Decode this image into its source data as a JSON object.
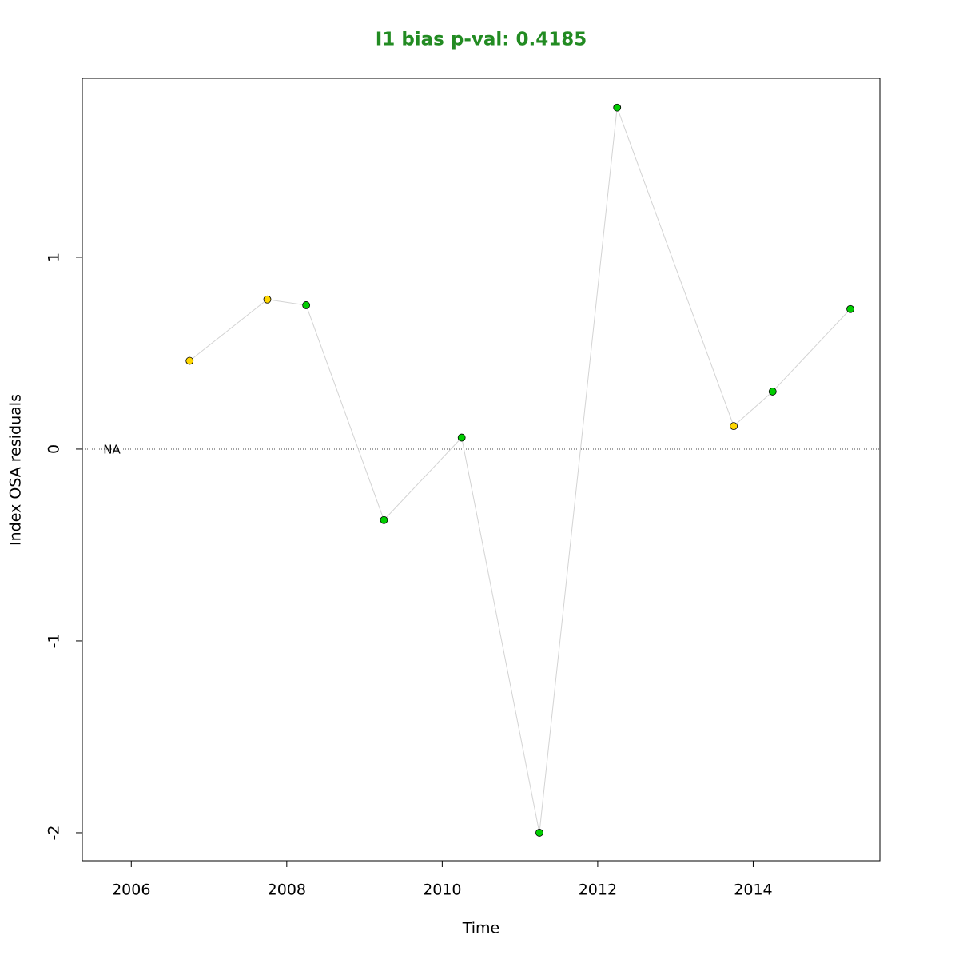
{
  "chart_data": {
    "type": "line",
    "title": "I1 bias p-val: 0.4185",
    "title_color": "#228b22",
    "xlabel": "Time",
    "ylabel": "Index OSA residuals",
    "x": [
      2006.75,
      2007.75,
      2008.25,
      2009.25,
      2010.25,
      2011.25,
      2012.25,
      2013.75,
      2014.25,
      2015.25
    ],
    "values": [
      0.46,
      0.78,
      0.75,
      -0.37,
      0.06,
      -2.0,
      1.78,
      0.12,
      0.3,
      0.73
    ],
    "point_colors": [
      "#ffd700",
      "#ffd700",
      "#00cd00",
      "#00cd00",
      "#00cd00",
      "#00cd00",
      "#00cd00",
      "#ffd700",
      "#00cd00",
      "#00cd00"
    ],
    "line_color": "#d3d3d3",
    "hline": 0,
    "annotations": [
      {
        "text": "NA",
        "x": 2005.75,
        "y": 0
      }
    ],
    "xlim": [
      2005.37,
      2015.63
    ],
    "ylim": [
      -2.146,
      1.933
    ],
    "xticks": [
      2006,
      2008,
      2010,
      2012,
      2014
    ],
    "yticks": [
      -2,
      -1,
      0,
      1
    ]
  }
}
